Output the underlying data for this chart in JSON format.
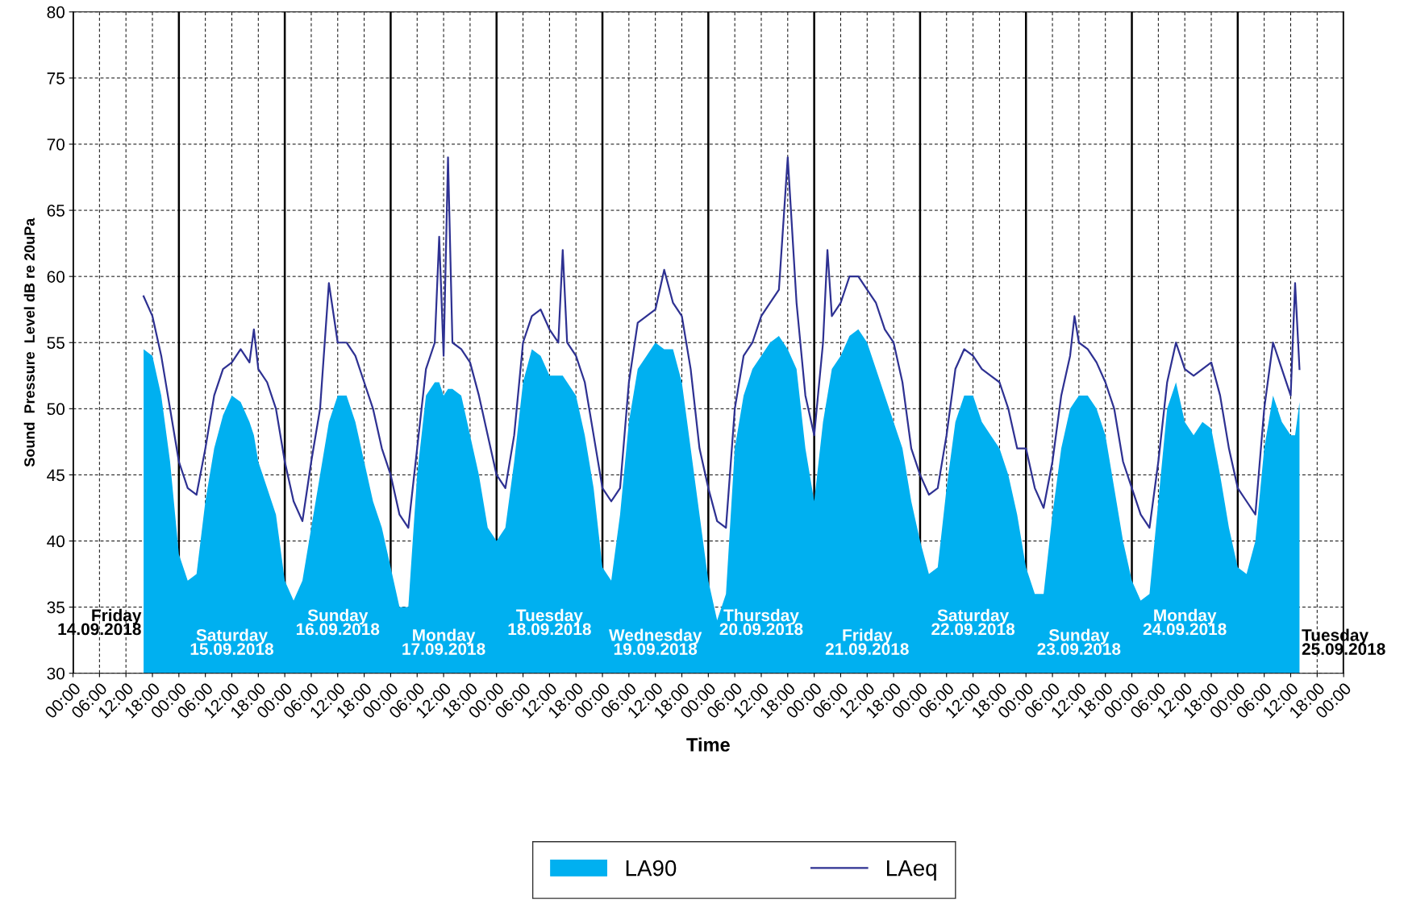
{
  "chart_data": {
    "type": "area",
    "xlabel": "Time",
    "ylabel": "Sound  Pressure  Level dB re 20uPa",
    "x": [
      "2018-09-14T16:00",
      "2018-09-14T18:00",
      "2018-09-14T20:00",
      "2018-09-14T22:00",
      "2018-09-15T00:00",
      "2018-09-15T02:00",
      "2018-09-15T04:00",
      "2018-09-15T06:00",
      "2018-09-15T08:00",
      "2018-09-15T10:00",
      "2018-09-15T12:00",
      "2018-09-15T14:00",
      "2018-09-15T16:00",
      "2018-09-15T17:00",
      "2018-09-15T18:00",
      "2018-09-15T20:00",
      "2018-09-15T22:00",
      "2018-09-16T00:00",
      "2018-09-16T02:00",
      "2018-09-16T04:00",
      "2018-09-16T06:00",
      "2018-09-16T08:00",
      "2018-09-16T10:00",
      "2018-09-16T12:00",
      "2018-09-16T14:00",
      "2018-09-16T16:00",
      "2018-09-16T18:00",
      "2018-09-16T20:00",
      "2018-09-16T22:00",
      "2018-09-17T00:00",
      "2018-09-17T02:00",
      "2018-09-17T04:00",
      "2018-09-17T06:00",
      "2018-09-17T08:00",
      "2018-09-17T10:00",
      "2018-09-17T11:00",
      "2018-09-17T12:00",
      "2018-09-17T13:00",
      "2018-09-17T14:00",
      "2018-09-17T16:00",
      "2018-09-17T18:00",
      "2018-09-17T20:00",
      "2018-09-17T22:00",
      "2018-09-18T00:00",
      "2018-09-18T02:00",
      "2018-09-18T04:00",
      "2018-09-18T06:00",
      "2018-09-18T08:00",
      "2018-09-18T10:00",
      "2018-09-18T12:00",
      "2018-09-18T14:00",
      "2018-09-18T15:00",
      "2018-09-18T16:00",
      "2018-09-18T18:00",
      "2018-09-18T20:00",
      "2018-09-18T22:00",
      "2018-09-19T00:00",
      "2018-09-19T02:00",
      "2018-09-19T04:00",
      "2018-09-19T06:00",
      "2018-09-19T08:00",
      "2018-09-19T10:00",
      "2018-09-19T12:00",
      "2018-09-19T14:00",
      "2018-09-19T16:00",
      "2018-09-19T18:00",
      "2018-09-19T20:00",
      "2018-09-19T22:00",
      "2018-09-20T00:00",
      "2018-09-20T02:00",
      "2018-09-20T04:00",
      "2018-09-20T06:00",
      "2018-09-20T08:00",
      "2018-09-20T10:00",
      "2018-09-20T12:00",
      "2018-09-20T14:00",
      "2018-09-20T16:00",
      "2018-09-20T18:00",
      "2018-09-20T20:00",
      "2018-09-20T22:00",
      "2018-09-21T00:00",
      "2018-09-21T02:00",
      "2018-09-21T03:00",
      "2018-09-21T04:00",
      "2018-09-21T06:00",
      "2018-09-21T08:00",
      "2018-09-21T10:00",
      "2018-09-21T12:00",
      "2018-09-21T14:00",
      "2018-09-21T16:00",
      "2018-09-21T18:00",
      "2018-09-21T20:00",
      "2018-09-21T22:00",
      "2018-09-22T00:00",
      "2018-09-22T02:00",
      "2018-09-22T04:00",
      "2018-09-22T06:00",
      "2018-09-22T08:00",
      "2018-09-22T10:00",
      "2018-09-22T12:00",
      "2018-09-22T14:00",
      "2018-09-22T16:00",
      "2018-09-22T18:00",
      "2018-09-22T20:00",
      "2018-09-22T22:00",
      "2018-09-23T00:00",
      "2018-09-23T02:00",
      "2018-09-23T04:00",
      "2018-09-23T06:00",
      "2018-09-23T08:00",
      "2018-09-23T10:00",
      "2018-09-23T11:00",
      "2018-09-23T12:00",
      "2018-09-23T14:00",
      "2018-09-23T16:00",
      "2018-09-23T18:00",
      "2018-09-23T20:00",
      "2018-09-23T22:00",
      "2018-09-24T00:00",
      "2018-09-24T02:00",
      "2018-09-24T04:00",
      "2018-09-24T06:00",
      "2018-09-24T08:00",
      "2018-09-24T10:00",
      "2018-09-24T12:00",
      "2018-09-24T14:00",
      "2018-09-24T16:00",
      "2018-09-24T18:00",
      "2018-09-24T20:00",
      "2018-09-24T22:00",
      "2018-09-25T00:00",
      "2018-09-25T02:00",
      "2018-09-25T04:00",
      "2018-09-25T06:00",
      "2018-09-25T08:00",
      "2018-09-25T10:00",
      "2018-09-25T12:00",
      "2018-09-25T13:00",
      "2018-09-25T14:00"
    ],
    "series": [
      {
        "name": "LA90",
        "color": "#00b0f0",
        "values": [
          54.5,
          54,
          51,
          46,
          39,
          37,
          37.5,
          43,
          47,
          49.5,
          51,
          50.5,
          49,
          48,
          46,
          44,
          42,
          37,
          35.5,
          37,
          41,
          45,
          49,
          51,
          51,
          49,
          46,
          43,
          41,
          38,
          35,
          35,
          45,
          51,
          52,
          52,
          51,
          51.5,
          51.5,
          51,
          48,
          45,
          41,
          40,
          41,
          46,
          52,
          54.5,
          54,
          52.5,
          52.5,
          52.5,
          52,
          51,
          48,
          44,
          38,
          37,
          42,
          49,
          53,
          54,
          55,
          54.5,
          54.5,
          52,
          47,
          42,
          37,
          34,
          36,
          47,
          51,
          53,
          54,
          55,
          55.5,
          54.5,
          53,
          47,
          43,
          49,
          51,
          53,
          54,
          55.5,
          56,
          55,
          53,
          51,
          49,
          47,
          43,
          40,
          37.5,
          38,
          44,
          49,
          51,
          51,
          49,
          48,
          47,
          45,
          42,
          38,
          36,
          36,
          42,
          47,
          50,
          50.5,
          51,
          51,
          50,
          48,
          44,
          40,
          37,
          35.5,
          36,
          43,
          50,
          52,
          49,
          48,
          49,
          48.5,
          45,
          41,
          38,
          37.5,
          40,
          47,
          51,
          49,
          48,
          48,
          50.5
        ]
      },
      {
        "name": "LAeq",
        "type": "line",
        "color": "#2e3192",
        "values": [
          58.5,
          57,
          54,
          50,
          46,
          44,
          43.5,
          47,
          51,
          53,
          53.5,
          54.5,
          53.5,
          56,
          53,
          52,
          50,
          46,
          43,
          41.5,
          46,
          50,
          59.5,
          55,
          55,
          54,
          52,
          50,
          47,
          45,
          42,
          41,
          47,
          53,
          55,
          63,
          54,
          69,
          55,
          54.5,
          53.5,
          51,
          48,
          45,
          44,
          48,
          55,
          57,
          57.5,
          56,
          55,
          62,
          55,
          54,
          52,
          48,
          44,
          43,
          44,
          52,
          56.5,
          57,
          57.5,
          60.5,
          58,
          57,
          53,
          47,
          44,
          41.5,
          41,
          50,
          54,
          55,
          57,
          58,
          59,
          69,
          58,
          51,
          48,
          55,
          62,
          57,
          58,
          60,
          60,
          59,
          58,
          56,
          55,
          52,
          47,
          45,
          43.5,
          44,
          48,
          53,
          54.5,
          54,
          53,
          52.5,
          52,
          50,
          47,
          47,
          44,
          42.5,
          46,
          51,
          54,
          57,
          55,
          54.5,
          53.5,
          52,
          50,
          46,
          44,
          42,
          41,
          46,
          52,
          55,
          53,
          52.5,
          53,
          53.5,
          51,
          47,
          44,
          43,
          42,
          50,
          55,
          53,
          51,
          59.5,
          53
        ]
      }
    ],
    "xlim": [
      "2018-09-14T00:00",
      "2018-09-26T00:00"
    ],
    "xticks": [
      {
        "value": "2018-09-14T00:00",
        "label": "00:00"
      },
      {
        "value": "2018-09-14T06:00",
        "label": "06:00"
      },
      {
        "value": "2018-09-14T12:00",
        "label": "12:00"
      },
      {
        "value": "2018-09-14T18:00",
        "label": "18:00"
      },
      {
        "value": "2018-09-15T00:00",
        "label": "00:00"
      },
      {
        "value": "2018-09-15T06:00",
        "label": "06:00"
      },
      {
        "value": "2018-09-15T12:00",
        "label": "12:00"
      },
      {
        "value": "2018-09-15T18:00",
        "label": "18:00"
      },
      {
        "value": "2018-09-16T00:00",
        "label": "00:00"
      },
      {
        "value": "2018-09-16T06:00",
        "label": "06:00"
      },
      {
        "value": "2018-09-16T12:00",
        "label": "12:00"
      },
      {
        "value": "2018-09-16T18:00",
        "label": "18:00"
      },
      {
        "value": "2018-09-17T00:00",
        "label": "00:00"
      },
      {
        "value": "2018-09-17T06:00",
        "label": "06:00"
      },
      {
        "value": "2018-09-17T12:00",
        "label": "12:00"
      },
      {
        "value": "2018-09-17T18:00",
        "label": "18:00"
      },
      {
        "value": "2018-09-18T00:00",
        "label": "00:00"
      },
      {
        "value": "2018-09-18T06:00",
        "label": "06:00"
      },
      {
        "value": "2018-09-18T12:00",
        "label": "12:00"
      },
      {
        "value": "2018-09-18T18:00",
        "label": "18:00"
      },
      {
        "value": "2018-09-19T00:00",
        "label": "00:00"
      },
      {
        "value": "2018-09-19T06:00",
        "label": "06:00"
      },
      {
        "value": "2018-09-19T12:00",
        "label": "12:00"
      },
      {
        "value": "2018-09-19T18:00",
        "label": "18:00"
      },
      {
        "value": "2018-09-20T00:00",
        "label": "00:00"
      },
      {
        "value": "2018-09-20T06:00",
        "label": "06:00"
      },
      {
        "value": "2018-09-20T12:00",
        "label": "12:00"
      },
      {
        "value": "2018-09-20T18:00",
        "label": "18:00"
      },
      {
        "value": "2018-09-21T00:00",
        "label": "00:00"
      },
      {
        "value": "2018-09-21T06:00",
        "label": "06:00"
      },
      {
        "value": "2018-09-21T12:00",
        "label": "12:00"
      },
      {
        "value": "2018-09-21T18:00",
        "label": "18:00"
      },
      {
        "value": "2018-09-22T00:00",
        "label": "00:00"
      },
      {
        "value": "2018-09-22T06:00",
        "label": "06:00"
      },
      {
        "value": "2018-09-22T12:00",
        "label": "12:00"
      },
      {
        "value": "2018-09-22T18:00",
        "label": "18:00"
      },
      {
        "value": "2018-09-23T00:00",
        "label": "00:00"
      },
      {
        "value": "2018-09-23T06:00",
        "label": "06:00"
      },
      {
        "value": "2018-09-23T12:00",
        "label": "12:00"
      },
      {
        "value": "2018-09-23T18:00",
        "label": "18:00"
      },
      {
        "value": "2018-09-24T00:00",
        "label": "00:00"
      },
      {
        "value": "2018-09-24T06:00",
        "label": "06:00"
      },
      {
        "value": "2018-09-24T12:00",
        "label": "12:00"
      },
      {
        "value": "2018-09-24T18:00",
        "label": "18:00"
      },
      {
        "value": "2018-09-25T00:00",
        "label": "00:00"
      },
      {
        "value": "2018-09-25T06:00",
        "label": "06:00"
      },
      {
        "value": "2018-09-25T12:00",
        "label": "12:00"
      },
      {
        "value": "2018-09-25T18:00",
        "label": "18:00"
      },
      {
        "value": "2018-09-26T00:00",
        "label": "00:00"
      }
    ],
    "ylim": [
      30,
      80
    ],
    "yticks": [
      30,
      35,
      40,
      45,
      50,
      55,
      60,
      65,
      70,
      75,
      80
    ],
    "grid": true,
    "legend": "bottom",
    "annotations": [
      "Friday\n14.09.2018",
      "Saturday\n15.09.2018",
      "Sunday\n16.09.2018",
      "Monday\n17.09.2018",
      "Tuesday\n18.09.2018",
      "Wednesday\n19.09.2018",
      "Thursday\n20.09.2018",
      "Friday\n21.09.2018",
      "Saturday\n22.09.2018",
      "Sunday\n23.09.2018",
      "Monday\n24.09.2018",
      "Tuesday\n25.09.2018"
    ]
  }
}
